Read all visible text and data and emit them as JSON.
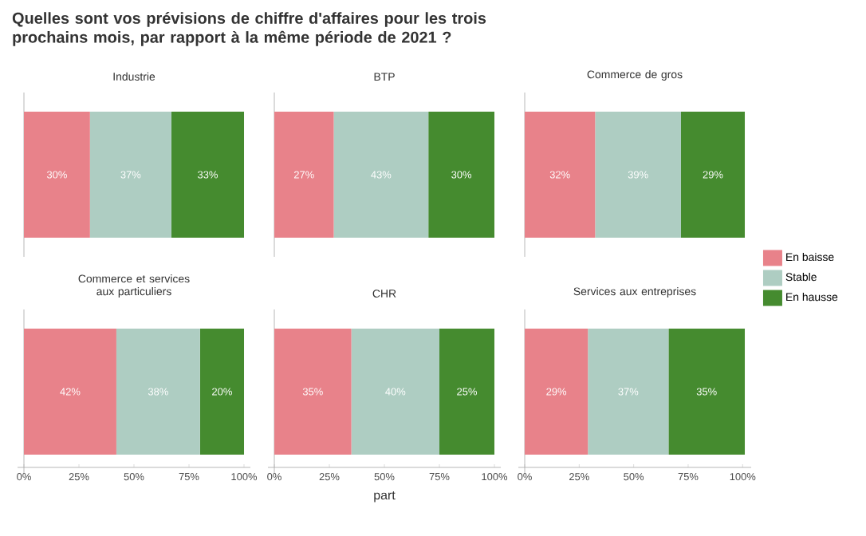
{
  "chart_data": [
    {
      "type": "bar",
      "orientation": "horizontal",
      "stacked": true,
      "title": "Industrie",
      "annotations": [
        "Quelles sont vos prévisions de chiffre d'affaires pour les trois prochains mois, par rapport à la même période de 2021 ?"
      ],
      "categories": [
        null
      ],
      "xlim": [
        0,
        100
      ],
      "tick_labels": false,
      "series": [
        {
          "color": "#e8828a",
          "values": [
            30
          ],
          "value_labels": [
            "30%"
          ]
        },
        {
          "color": "#aecdc2",
          "values": [
            37
          ],
          "value_labels": [
            "37%"
          ]
        },
        {
          "color": "#458b2f",
          "values": [
            33
          ],
          "value_labels": [
            "33%"
          ]
        }
      ]
    },
    {
      "type": "bar",
      "orientation": "horizontal",
      "stacked": true,
      "title": "BTP",
      "categories": [
        null
      ],
      "xlim": [
        0,
        100
      ],
      "tick_labels": false,
      "series": [
        {
          "color": "#e8828a",
          "values": [
            27
          ],
          "value_labels": [
            "27%"
          ]
        },
        {
          "color": "#aecdc2",
          "values": [
            43
          ],
          "value_labels": [
            "43%"
          ]
        },
        {
          "color": "#458b2f",
          "values": [
            30
          ],
          "value_labels": [
            "30%"
          ]
        }
      ]
    },
    {
      "type": "bar",
      "orientation": "horizontal",
      "stacked": true,
      "title": "Commerce de gros",
      "categories": [
        null
      ],
      "xlim": [
        0,
        100
      ],
      "tick_labels": false,
      "series": [
        {
          "color": "#e8828a",
          "values": [
            32
          ],
          "value_labels": [
            "32%"
          ]
        },
        {
          "color": "#aecdc2",
          "values": [
            39
          ],
          "value_labels": [
            "39%"
          ]
        },
        {
          "color": "#458b2f",
          "values": [
            29
          ],
          "value_labels": [
            "29%"
          ]
        }
      ]
    },
    {
      "type": "bar",
      "orientation": "horizontal",
      "stacked": true,
      "title": "Commerce et services aux particuliers",
      "categories": [
        null
      ],
      "xlim": [
        0,
        100
      ],
      "xticks": [
        {
          "value": 0,
          "label": "0%"
        },
        {
          "value": 25,
          "label": "25%"
        },
        {
          "value": 50,
          "label": "50%"
        },
        {
          "value": 75,
          "label": "75%"
        },
        {
          "value": 100,
          "label": "100%"
        }
      ],
      "tick_labels": "x",
      "series": [
        {
          "color": "#e8828a",
          "values": [
            42
          ],
          "value_labels": [
            "42%"
          ]
        },
        {
          "color": "#aecdc2",
          "values": [
            38
          ],
          "value_labels": [
            "38%"
          ]
        },
        {
          "color": "#458b2f",
          "values": [
            20
          ],
          "value_labels": [
            "20%"
          ]
        }
      ]
    },
    {
      "type": "bar",
      "orientation": "horizontal",
      "stacked": true,
      "title": "CHR",
      "xlabel": "part",
      "categories": [
        null
      ],
      "xlim": [
        0,
        100
      ],
      "xticks": [
        {
          "value": 0,
          "label": "0%"
        },
        {
          "value": 25,
          "label": "25%"
        },
        {
          "value": 50,
          "label": "50%"
        },
        {
          "value": 75,
          "label": "75%"
        },
        {
          "value": 100,
          "label": "100%"
        }
      ],
      "tick_labels": "x",
      "series": [
        {
          "color": "#e8828a",
          "values": [
            35
          ],
          "value_labels": [
            "35%"
          ]
        },
        {
          "color": "#aecdc2",
          "values": [
            40
          ],
          "value_labels": [
            "40%"
          ]
        },
        {
          "color": "#458b2f",
          "values": [
            25
          ],
          "value_labels": [
            "25%"
          ]
        }
      ]
    },
    {
      "type": "bar",
      "orientation": "horizontal",
      "stacked": true,
      "title": "Services aux entreprises",
      "legend": "right",
      "categories": [
        null
      ],
      "xlim": [
        0,
        101
      ],
      "xticks": [
        {
          "value": 0,
          "label": "0%"
        },
        {
          "value": 25,
          "label": "25%"
        },
        {
          "value": 50,
          "label": "50%"
        },
        {
          "value": 75,
          "label": "75%"
        },
        {
          "value": 100,
          "label": "100%"
        }
      ],
      "tick_labels": "x",
      "series": [
        {
          "name": "En baisse",
          "color": "#e8828a",
          "values": [
            29
          ],
          "value_labels": [
            "29%"
          ]
        },
        {
          "name": "Stable",
          "color": "#aecdc2",
          "values": [
            37
          ],
          "value_labels": [
            "37%"
          ]
        },
        {
          "name": "En hausse",
          "color": "#458b2f",
          "values": [
            35
          ],
          "value_labels": [
            "35%"
          ]
        }
      ]
    }
  ]
}
